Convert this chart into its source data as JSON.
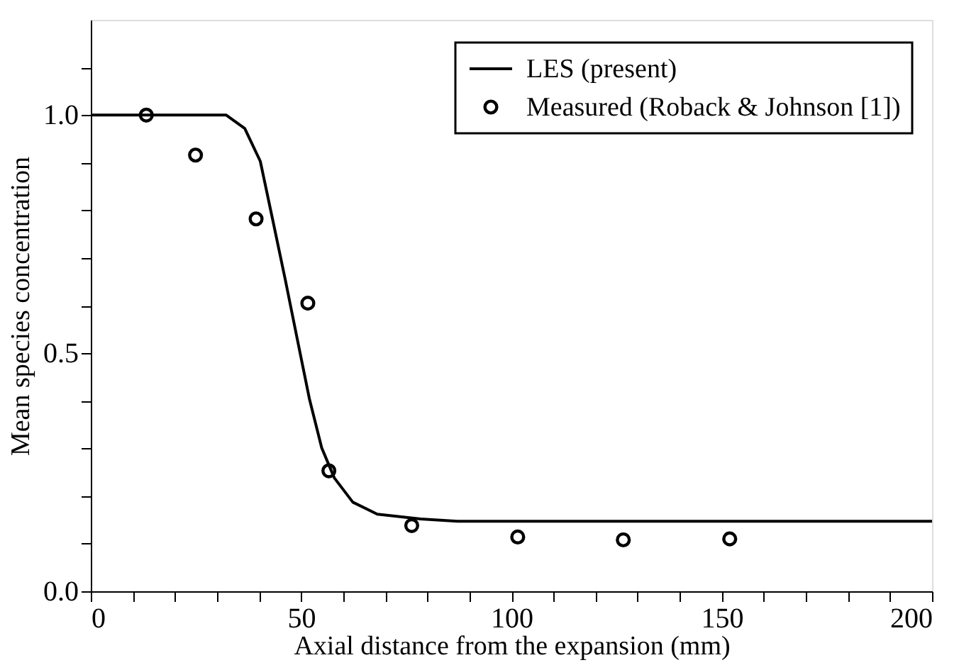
{
  "chart_data": {
    "type": "line",
    "xlabel": "Axial distance from the expansion (mm)",
    "ylabel": "Mean species concentration",
    "xlim": [
      0,
      200
    ],
    "ylim": [
      0,
      1.2
    ],
    "xticks": [
      0,
      {
        "value": 10,
        "label": null
      },
      {
        "value": 20,
        "label": null
      },
      {
        "value": 30,
        "label": null
      },
      {
        "value": 40,
        "label": null
      },
      50,
      {
        "value": 60,
        "label": null
      },
      {
        "value": 70,
        "label": null
      },
      {
        "value": 80,
        "label": null
      },
      {
        "value": 90,
        "label": null
      },
      100,
      {
        "value": 110,
        "label": null
      },
      {
        "value": 120,
        "label": null
      },
      {
        "value": 130,
        "label": null
      },
      {
        "value": 140,
        "label": null
      },
      150,
      {
        "value": 160,
        "label": null
      },
      {
        "value": 170,
        "label": null
      },
      {
        "value": 180,
        "label": null
      },
      {
        "value": 190,
        "label": null
      },
      200
    ],
    "yticks": [
      {
        "value": 0,
        "label": "0.0"
      },
      {
        "value": 0.1,
        "label": null
      },
      {
        "value": 0.2,
        "label": null
      },
      {
        "value": 0.3,
        "label": null
      },
      {
        "value": 0.4,
        "label": null
      },
      0.5,
      {
        "value": 0.6,
        "label": null
      },
      {
        "value": 0.7,
        "label": null
      },
      {
        "value": 0.8,
        "label": null
      },
      {
        "value": 0.9,
        "label": null
      },
      {
        "value": 1,
        "label": "1.0"
      },
      {
        "value": 1.1,
        "label": null
      }
    ],
    "grid": false,
    "legend": "top right",
    "series": [
      {
        "name": "LES (present)",
        "type": "line",
        "color": "#000000",
        "line_style": "solid",
        "marker": "none",
        "x": [
          0,
          32.2,
          36.6,
          40.3,
          43.2,
          46.2,
          49.1,
          52.0,
          54.9,
          57.9,
          62.3,
          68.1,
          78.4,
          87.2,
          122.3,
          200
        ],
        "values": [
          1.0,
          1.0,
          0.972,
          0.903,
          0.782,
          0.656,
          0.529,
          0.403,
          0.301,
          0.238,
          0.187,
          0.162,
          0.152,
          0.147,
          0.147,
          0.147
        ]
      },
      {
        "name": "Measured (Roback & Johnson [1])",
        "type": "scatter",
        "color": "#000000",
        "marker": "circle",
        "x": [
          13.2,
          24.9,
          39.3,
          51.6,
          56.6,
          76.3,
          101.5,
          126.6,
          151.9
        ],
        "values": [
          1.0,
          0.916,
          0.782,
          0.605,
          0.253,
          0.138,
          0.114,
          0.108,
          0.11
        ]
      }
    ]
  }
}
